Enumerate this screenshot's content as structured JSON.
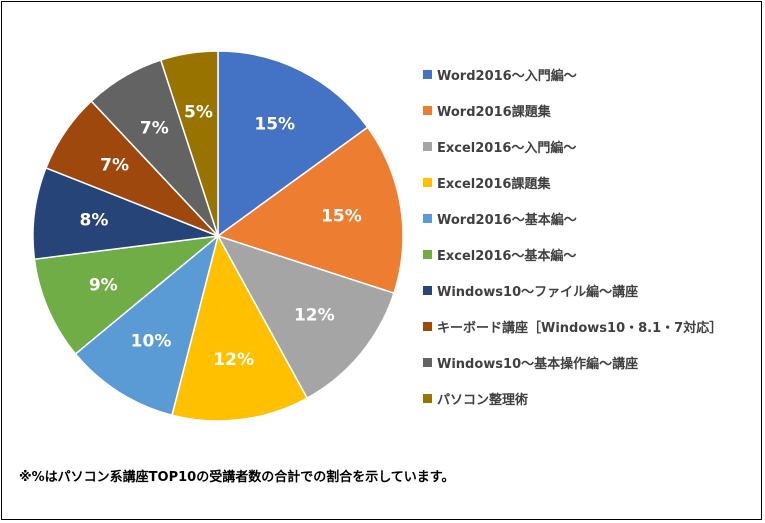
{
  "chart_data": {
    "type": "pie",
    "categories": [
      "Word2016～入門編～",
      "Word2016課題集",
      "Excel2016～入門編～",
      "Excel2016課題集",
      "Word2016～基本編～",
      "Excel2016～基本編～",
      "Windows10～ファイル編～講座",
      "キーボード講座［Windows10・8.1・7対応］",
      "Windows10～基本操作編～講座",
      "パソコン整理術"
    ],
    "values": [
      15,
      15,
      12,
      12,
      10,
      9,
      8,
      7,
      7,
      5
    ],
    "value_labels": [
      "15%",
      "15%",
      "12%",
      "12%",
      "10%",
      "9%",
      "8%",
      "7%",
      "7%",
      "5%"
    ],
    "colors": [
      "#4472C4",
      "#ED7D31",
      "#A5A5A5",
      "#FFC000",
      "#5B9BD5",
      "#70AD47",
      "#264478",
      "#9E480E",
      "#636363",
      "#997300"
    ],
    "label_colors": [
      "#ffffff",
      "#ffffff",
      "#ffffff",
      "#ffffff",
      "#ffffff",
      "#ffffff",
      "#ffffff",
      "#ffffff",
      "#ffffff",
      "#ffffff"
    ],
    "legend_position": "right",
    "start_angle": "12 o'clock",
    "direction": "clockwise"
  },
  "footnote": "※%はパソコン系講座TOP10の受講者数の合計での割合を示しています。"
}
